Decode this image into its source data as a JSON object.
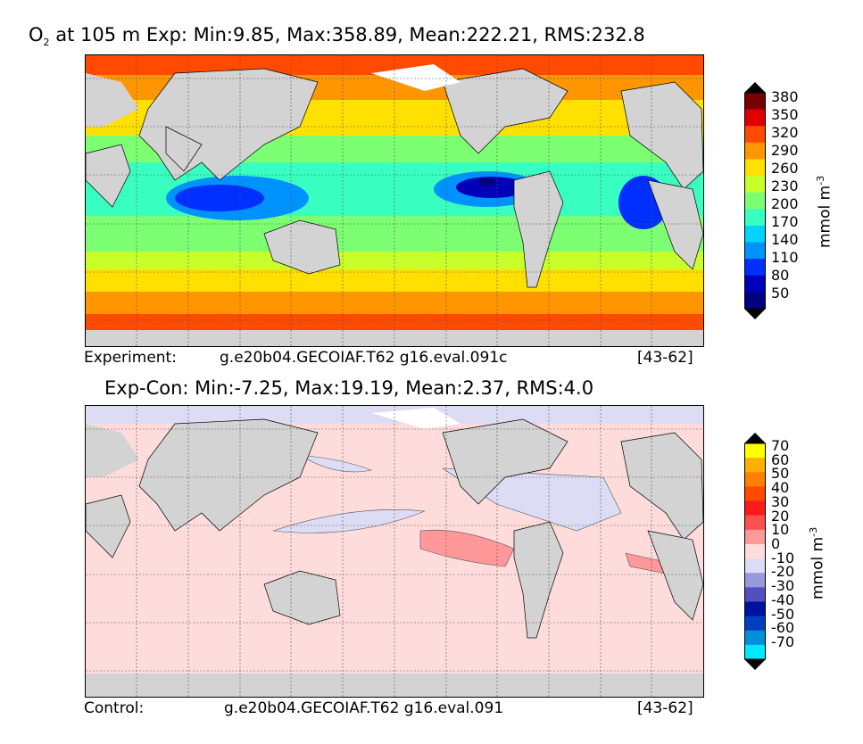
{
  "top_panel": {
    "title_prefix": "O",
    "title_sub": "2",
    "title_rest": " at 105 m Exp: Min:9.85, Max:358.89, Mean:222.21, RMS:232.8",
    "caption_left": "Experiment:",
    "caption_mid": "g.e20b04.GECOIAF.T62 g16.eval.091c",
    "caption_right": "[43-62]",
    "colorbar": {
      "labels": [
        "380",
        "350",
        "320",
        "290",
        "260",
        "230",
        "200",
        "170",
        "140",
        "110",
        "80",
        "50"
      ],
      "colors": [
        "#7a0000",
        "#e00000",
        "#ff4a00",
        "#ff9600",
        "#ffe000",
        "#c8ff2a",
        "#7cff72",
        "#38ffc0",
        "#00d4ff",
        "#0092ff",
        "#0030ff",
        "#0000b8",
        "#000080"
      ],
      "unit_text": "mmol m",
      "unit_sup": "-3"
    }
  },
  "bottom_panel": {
    "title": "Exp-Con: Min:-7.25, Max:19.19, Mean:2.37, RMS:4.0",
    "caption_left": "Control:",
    "caption_mid": "g.e20b04.GECOIAF.T62 g16.eval.091",
    "caption_right": "[43-62]",
    "colorbar": {
      "labels": [
        "70",
        "60",
        "50",
        "40",
        "30",
        "20",
        "10",
        "0",
        "-10",
        "-20",
        "-30",
        "-40",
        "-50",
        "-60",
        "-70"
      ],
      "colors": [
        "#ffff00",
        "#ffb000",
        "#ff8000",
        "#ff4800",
        "#ff1a1a",
        "#ff5050",
        "#ff9898",
        "#ffdcdc",
        "#dcdcf5",
        "#9898dc",
        "#5050c0",
        "#0010a0",
        "#0040c0",
        "#0090d8",
        "#00e8ff"
      ],
      "unit_text": "mmol m",
      "unit_sup": "-3"
    }
  }
}
